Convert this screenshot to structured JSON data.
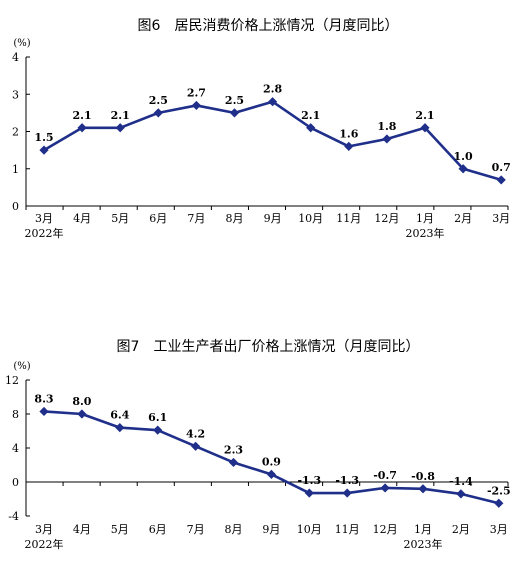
{
  "chart_data": [
    {
      "type": "line",
      "title": "图6　居民消费价格上涨情况（月度同比）",
      "unit": "(%)",
      "categories": [
        "3月",
        "4月",
        "5月",
        "6月",
        "7月",
        "8月",
        "9月",
        "10月",
        "11月",
        "12月",
        "1月",
        "2月",
        "3月"
      ],
      "year_labels": [
        {
          "index": 0,
          "text": "2022年"
        },
        {
          "index": 10,
          "text": "2023年"
        }
      ],
      "values": [
        1.5,
        2.1,
        2.1,
        2.5,
        2.7,
        2.5,
        2.8,
        2.1,
        1.6,
        1.8,
        2.1,
        1.0,
        0.7
      ],
      "data_labels": [
        "1.5",
        "2.1",
        "2.1",
        "2.5",
        "2.7",
        "2.5",
        "2.8",
        "2.1",
        "1.6",
        "1.8",
        "2.1",
        "1.0",
        "0.7"
      ],
      "yticks": [
        0,
        1,
        2,
        3,
        4
      ],
      "ylim": [
        0,
        4
      ],
      "line_color": "#1f2f8a",
      "grid": false
    },
    {
      "type": "line",
      "title": "图7　工业生产者出厂价格上涨情况（月度同比）",
      "unit": "(%)",
      "categories": [
        "3月",
        "4月",
        "5月",
        "6月",
        "7月",
        "8月",
        "9月",
        "10月",
        "11月",
        "12月",
        "1月",
        "2月",
        "3月"
      ],
      "year_labels": [
        {
          "index": 0,
          "text": "2022年"
        },
        {
          "index": 10,
          "text": "2023年"
        }
      ],
      "values": [
        8.3,
        8.0,
        6.4,
        6.1,
        4.2,
        2.3,
        0.9,
        -1.3,
        -1.3,
        -0.7,
        -0.8,
        -1.4,
        -2.5
      ],
      "data_labels": [
        "8.3",
        "8.0",
        "6.4",
        "6.1",
        "4.2",
        "2.3",
        "0.9",
        "-1.3",
        "-1.3",
        "-0.7",
        "-0.8",
        "-1.4",
        "-2.5"
      ],
      "yticks": [
        -4,
        0,
        4,
        8,
        12
      ],
      "ylim": [
        -4,
        12
      ],
      "line_color": "#1f2f8a",
      "grid": false
    }
  ]
}
